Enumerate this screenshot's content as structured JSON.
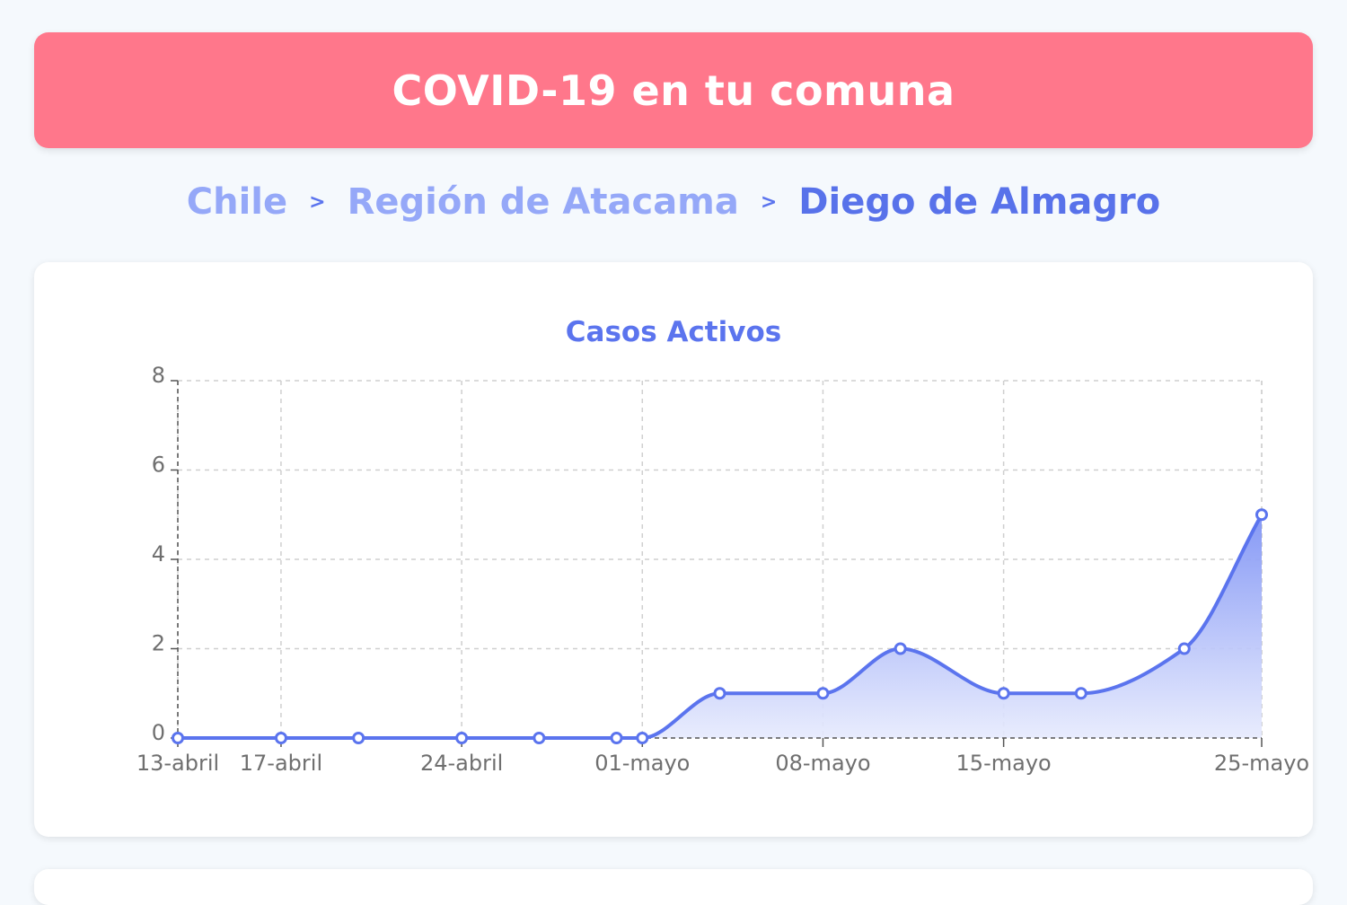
{
  "header": {
    "title": "COVID-19 en tu comuna"
  },
  "breadcrumb": {
    "items": [
      "Chile",
      "Región de Atacama",
      "Diego de Almagro"
    ],
    "separator": ">"
  },
  "colors": {
    "header_bg": "#ff778b",
    "accent": "#5b74ee",
    "breadcrumb_link": "#95a8f8",
    "line": "#5b74ee"
  },
  "chart_data": {
    "type": "area",
    "title": "Casos Activos",
    "x": [
      "13-abril",
      "17-abril",
      "20-abril",
      "24-abril",
      "27-abril",
      "30-abril",
      "01-mayo",
      "04-mayo",
      "08-mayo",
      "11-mayo",
      "15-mayo",
      "18-mayo",
      "22-mayo",
      "25-mayo"
    ],
    "x_dates": [
      "2020-04-13",
      "2020-04-17",
      "2020-04-20",
      "2020-04-24",
      "2020-04-27",
      "2020-04-30",
      "2020-05-01",
      "2020-05-04",
      "2020-05-08",
      "2020-05-11",
      "2020-05-15",
      "2020-05-18",
      "2020-05-22",
      "2020-05-25"
    ],
    "series": [
      {
        "values": [
          0,
          0,
          0,
          0,
          0,
          0,
          0,
          1,
          1,
          2,
          1,
          1,
          2,
          5
        ]
      }
    ],
    "xticks": [
      "13-abril",
      "17-abril",
      "24-abril",
      "01-mayo",
      "08-mayo",
      "15-mayo",
      "25-mayo"
    ],
    "yticks": [
      0,
      2,
      4,
      6,
      8
    ],
    "ylim": [
      0,
      8
    ],
    "grid": true,
    "legend": "none"
  }
}
